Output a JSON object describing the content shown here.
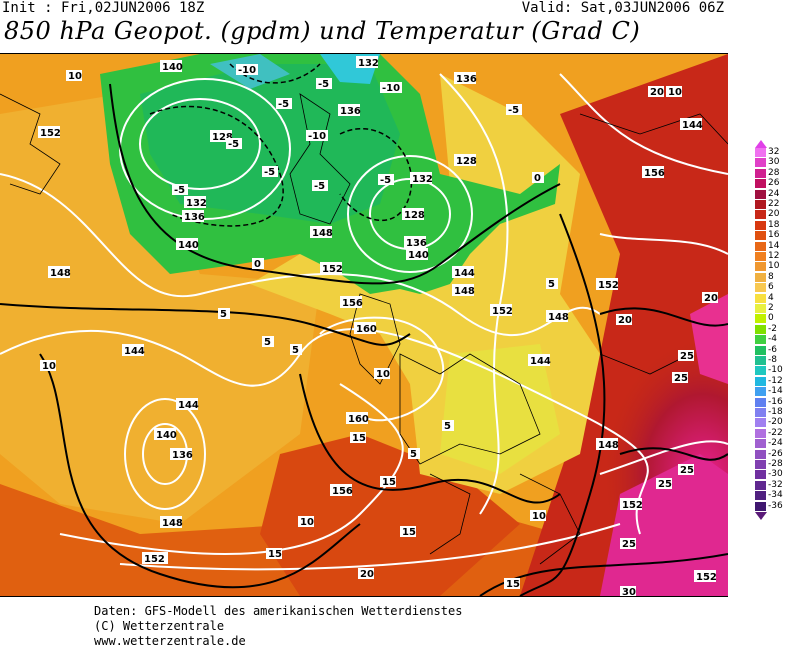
{
  "header": {
    "init_text": "Init : Fri,02JUN2006 18Z",
    "valid_text": "Valid: Sat,03JUN2006 06Z",
    "title": "850 hPa Geopot. (gpdm) und Temperatur (Grad C)"
  },
  "footer": {
    "line1": "Daten: GFS-Modell des amerikanischen Wetterdienstes",
    "line2": "(C) Wetterzentrale",
    "line3": "www.wetterzentrale.de"
  },
  "color_scale": {
    "labels": [
      "32",
      "30",
      "28",
      "26",
      "24",
      "22",
      "20",
      "18",
      "16",
      "14",
      "12",
      "10",
      "8",
      "6",
      "4",
      "2",
      "0",
      "-2",
      "-4",
      "-6",
      "-8",
      "-10",
      "-12",
      "-14",
      "-16",
      "-18",
      "-20",
      "-22",
      "-24",
      "-26",
      "-28",
      "-30",
      "-32",
      "-34",
      "-36"
    ],
    "colors": [
      "#f070f0",
      "#e040c8",
      "#d02090",
      "#c01060",
      "#a01040",
      "#b01820",
      "#c82818",
      "#d83810",
      "#e05010",
      "#e86818",
      "#f08020",
      "#f09830",
      "#f0b040",
      "#f8c850",
      "#f8e040",
      "#e8f040",
      "#c0f000",
      "#80e000",
      "#40d040",
      "#20c060",
      "#20c090",
      "#20c8c0",
      "#20b8e0",
      "#40a0f0",
      "#6080f0",
      "#8080f0",
      "#a080f0",
      "#b070e0",
      "#a060d0",
      "#9050c0",
      "#8040b0",
      "#7030a0",
      "#602890",
      "#502080",
      "#401870"
    ]
  },
  "map": {
    "geopotential_labels": [
      "140",
      "132",
      "136",
      "152",
      "128",
      "132",
      "136",
      "140",
      "148",
      "144",
      "128",
      "136",
      "140",
      "136",
      "152",
      "128",
      "132",
      "148",
      "144",
      "148",
      "152",
      "156",
      "160",
      "144",
      "140",
      "144",
      "136",
      "148",
      "152",
      "160",
      "156",
      "148",
      "152",
      "148",
      "144",
      "156",
      "152",
      "152"
    ],
    "temperature_labels": [
      "10",
      "-10",
      "-5",
      "-5",
      "-5",
      "-10",
      "-10",
      "-5",
      "-5",
      "-5",
      "-5",
      "0",
      "-5",
      "0",
      "5",
      "5",
      "5",
      "10",
      "5",
      "10",
      "5",
      "5",
      "15",
      "15",
      "10",
      "15",
      "20",
      "15",
      "20",
      "25",
      "25",
      "25",
      "25",
      "10",
      "15",
      "20",
      "30",
      "10",
      "25",
      "20"
    ]
  }
}
